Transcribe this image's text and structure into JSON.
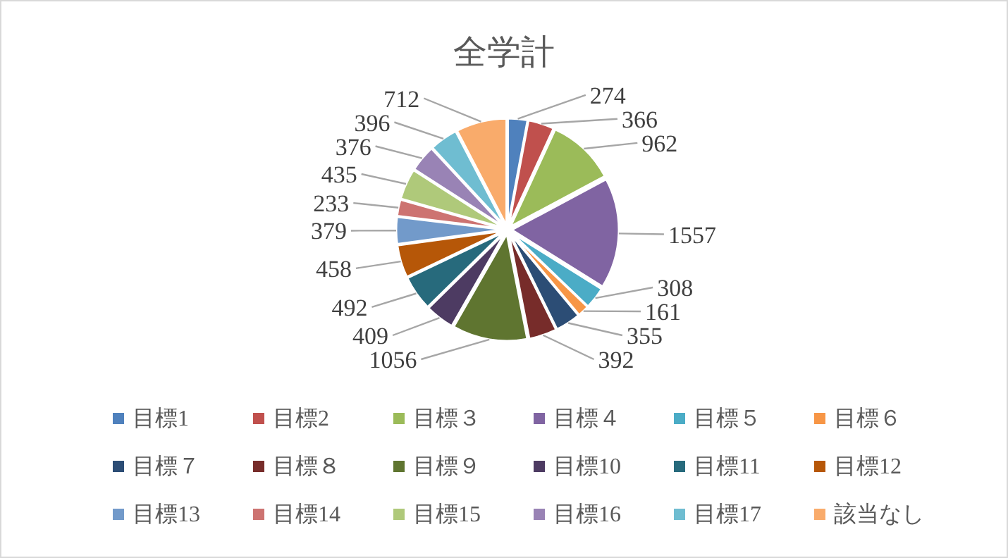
{
  "chart_data": {
    "type": "pie",
    "title": "全学計",
    "categories": [
      "目標1",
      "目標2",
      "目標３",
      "目標４",
      "目標５",
      "目標６",
      "目標７",
      "目標８",
      "目標９",
      "目標10",
      "目標11",
      "目標12",
      "目標13",
      "目標14",
      "目標15",
      "目標16",
      "目標17",
      "該当なし"
    ],
    "values": [
      274,
      366,
      962,
      1557,
      308,
      161,
      355,
      392,
      1056,
      409,
      492,
      458,
      379,
      233,
      435,
      376,
      396,
      712
    ],
    "colors": [
      "#4f81bd",
      "#c0504d",
      "#9bbb59",
      "#8064a2",
      "#4bacc6",
      "#f79646",
      "#2c4d75",
      "#772c2a",
      "#5f7530",
      "#4d3b62",
      "#276a7c",
      "#b65708",
      "#729aca",
      "#cd7371",
      "#afc97a",
      "#9983b5",
      "#6fbdd1",
      "#f9ab6b"
    ],
    "data_labels": true,
    "legend": "bottom"
  }
}
